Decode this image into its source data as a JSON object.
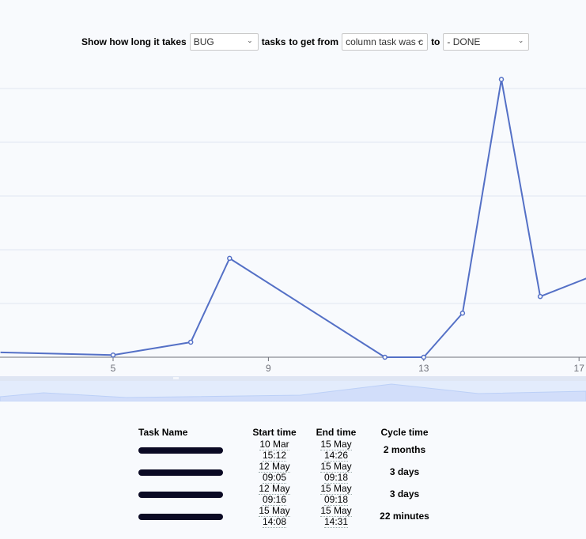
{
  "controls": {
    "prefix": "Show how long it takes",
    "task_type": "BUG",
    "middle": "tasks",
    "from_label": "to get from",
    "from_column": "column task was c",
    "to_label": "to",
    "to_column": "- DONE"
  },
  "colors": {
    "line": "#5470c6",
    "grid": "#e0e6f1",
    "axis": "#6e7079",
    "background": "#f8fafd",
    "zoom_fill": "#dbe6fb"
  },
  "chart_data": {
    "type": "line",
    "title": "",
    "xlabel": "",
    "ylabel": "",
    "x_ticks": [
      5,
      9,
      13,
      17
    ],
    "x": [
      2.1,
      5,
      7,
      8,
      12,
      13,
      14,
      15,
      16,
      17.2
    ],
    "values": [
      0.09,
      0.04,
      0.28,
      1.84,
      0.0,
      0.0,
      0.82,
      5.17,
      1.13,
      1.47
    ],
    "y_gridlines": 5,
    "y_unit_note": "y-axis tick labels not visible (cropped)",
    "grid": true,
    "legend": "none",
    "data_zoom_slider": true
  },
  "table": {
    "headers": [
      "Task Name",
      "Start time",
      "End time",
      "Cycle time"
    ],
    "rows": [
      {
        "name": "[redacted]",
        "start": "10 Mar 15:12",
        "end": "15 May 14:26",
        "cycle": "2 months"
      },
      {
        "name": "[redacted]",
        "start": "12 May 09:05",
        "end": "15 May 09:18",
        "cycle": "3 days"
      },
      {
        "name": "[redacted]",
        "start": "12 May 09:16",
        "end": "15 May 09:18",
        "cycle": "3 days"
      },
      {
        "name": "[redacted]",
        "start": "15 May 14:08",
        "end": "15 May 14:31",
        "cycle": "22 minutes"
      }
    ]
  }
}
